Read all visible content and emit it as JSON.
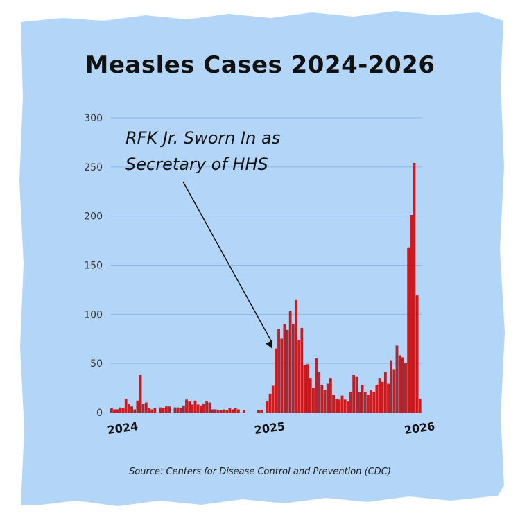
{
  "colors": {
    "background": "#b3d5f7",
    "bar": "#d11a1f",
    "bar_edge": "#8f0f12",
    "grid": "#8eb6e6",
    "text": "#111111"
  },
  "chart_data": {
    "type": "bar",
    "title": "Measles Cases 2024-2026",
    "source": "Source: Centers for Disease Control and Prevention (CDC)",
    "annotation": {
      "lines": [
        "RFK Jr. Sworn In as",
        "Secretary of HHS"
      ],
      "points_to_week_index": 56
    },
    "ylim": [
      0,
      300
    ],
    "yticks": [
      0,
      50,
      100,
      150,
      200,
      250,
      300
    ],
    "x_tick_labels": [
      {
        "label": "2024",
        "week_index": 4
      },
      {
        "label": "2025",
        "week_index": 55
      },
      {
        "label": "2026",
        "week_index": 107
      }
    ],
    "grid": "horizontal",
    "values": [
      4,
      3,
      3,
      5,
      4,
      14,
      9,
      6,
      3,
      12,
      38,
      9,
      10,
      4,
      3,
      4,
      0,
      5,
      4,
      6,
      6,
      0,
      5,
      5,
      4,
      7,
      13,
      11,
      8,
      12,
      8,
      7,
      9,
      11,
      10,
      3,
      3,
      2,
      2,
      3,
      2,
      4,
      3,
      4,
      3,
      0,
      2,
      0,
      0,
      0,
      0,
      2,
      2,
      0,
      11,
      19,
      27,
      65,
      85,
      75,
      90,
      84,
      103,
      90,
      115,
      74,
      86,
      48,
      49,
      35,
      25,
      55,
      41,
      28,
      23,
      29,
      35,
      18,
      14,
      13,
      17,
      13,
      11,
      21,
      38,
      36,
      21,
      28,
      21,
      18,
      23,
      21,
      28,
      35,
      31,
      41,
      29,
      53,
      44,
      68,
      58,
      56,
      50,
      168,
      201,
      254,
      119,
      14
    ]
  }
}
